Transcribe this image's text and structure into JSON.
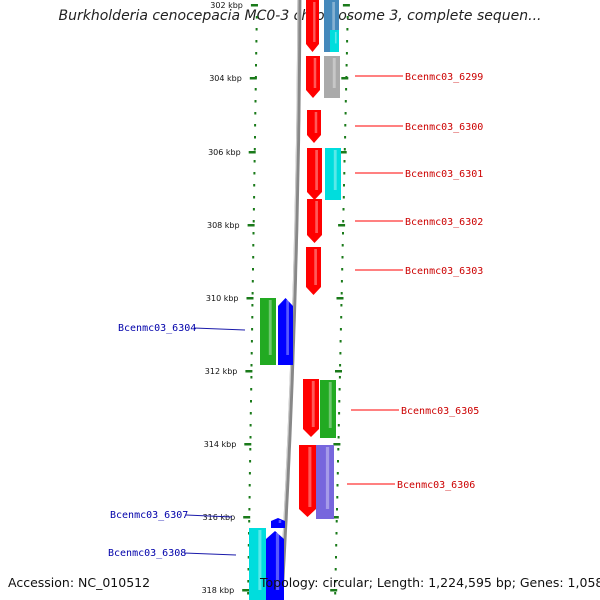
{
  "title": "Burkholderia cenocepacia MC0-3 chromosome 3, complete sequen...",
  "footer": {
    "accession": "Accession: NC_010512",
    "topology": "Topology: circular; Length: 1,224,595 bp; Genes: 1,058"
  },
  "ticks": [
    "302 kbp",
    "304 kbp",
    "306 kbp",
    "308 kbp",
    "310 kbp",
    "312 kbp",
    "314 kbp",
    "316 kbp",
    "318 kbp"
  ],
  "colors": {
    "forward": "#ff0000",
    "reverse": "#0000ff",
    "green": "#22aa22",
    "cyan": "#00dddd",
    "gray": "#aaaaaa",
    "purple": "#7766dd",
    "steel": "#4488bb",
    "backbone": "#888888",
    "tickline": "#1a7a1a"
  },
  "forward_labels": [
    "Bcenmc03_6299",
    "Bcenmc03_6300",
    "Bcenmc03_6301",
    "Bcenmc03_6302",
    "Bcenmc03_6303",
    "Bcenmc03_6305",
    "Bcenmc03_6306"
  ],
  "reverse_labels": [
    "Bcenmc03_6304",
    "Bcenmc03_6307",
    "Bcenmc03_6308"
  ]
}
